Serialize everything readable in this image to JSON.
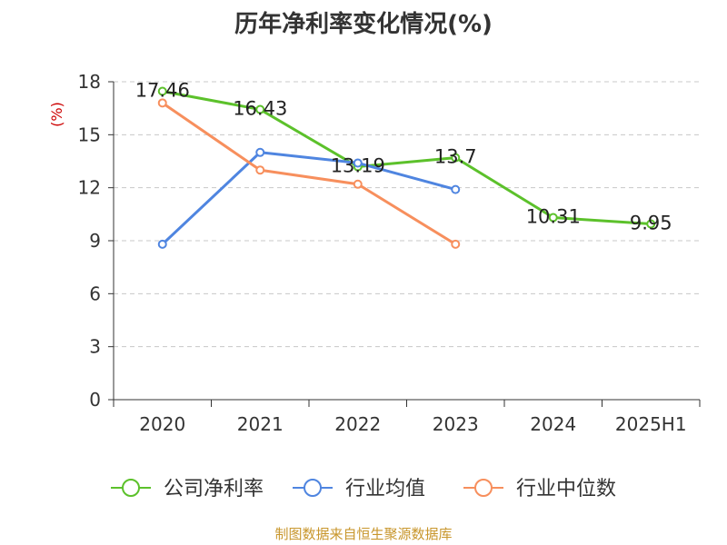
{
  "title": "历年净利率变化情况(%)",
  "source": "制图数据来自恒生聚源数据库",
  "colors": {
    "company": "#5cc12b",
    "industry_avg": "#4f85e0",
    "industry_median": "#f78f5d",
    "unit": "#cc0000",
    "source": "#c8962c"
  },
  "chart_data": {
    "type": "line",
    "title": "历年净利率变化情况(%)",
    "ylabel": "(%)",
    "xlabel": "",
    "categories": [
      "2020",
      "2021",
      "2022",
      "2023",
      "2024",
      "2025H1"
    ],
    "ylim": [
      0,
      18
    ],
    "yticks": [
      "0",
      "3",
      "6",
      "9",
      "12",
      "15",
      "18"
    ],
    "grid": true,
    "legend_position": "bottom",
    "series": [
      {
        "name": "公司净利率",
        "key": "company",
        "values": [
          17.46,
          16.43,
          13.19,
          13.7,
          10.31,
          9.95
        ],
        "labels": [
          "17.46",
          "16.43",
          "13.19",
          "13.7",
          "10.31",
          "9.95"
        ]
      },
      {
        "name": "行业均值",
        "key": "industry_avg",
        "values": [
          8.8,
          14.0,
          13.4,
          11.9,
          null,
          null
        ],
        "labels": null
      },
      {
        "name": "行业中位数",
        "key": "industry_median",
        "values": [
          16.8,
          13.0,
          12.2,
          8.8,
          null,
          null
        ],
        "labels": null
      }
    ]
  }
}
